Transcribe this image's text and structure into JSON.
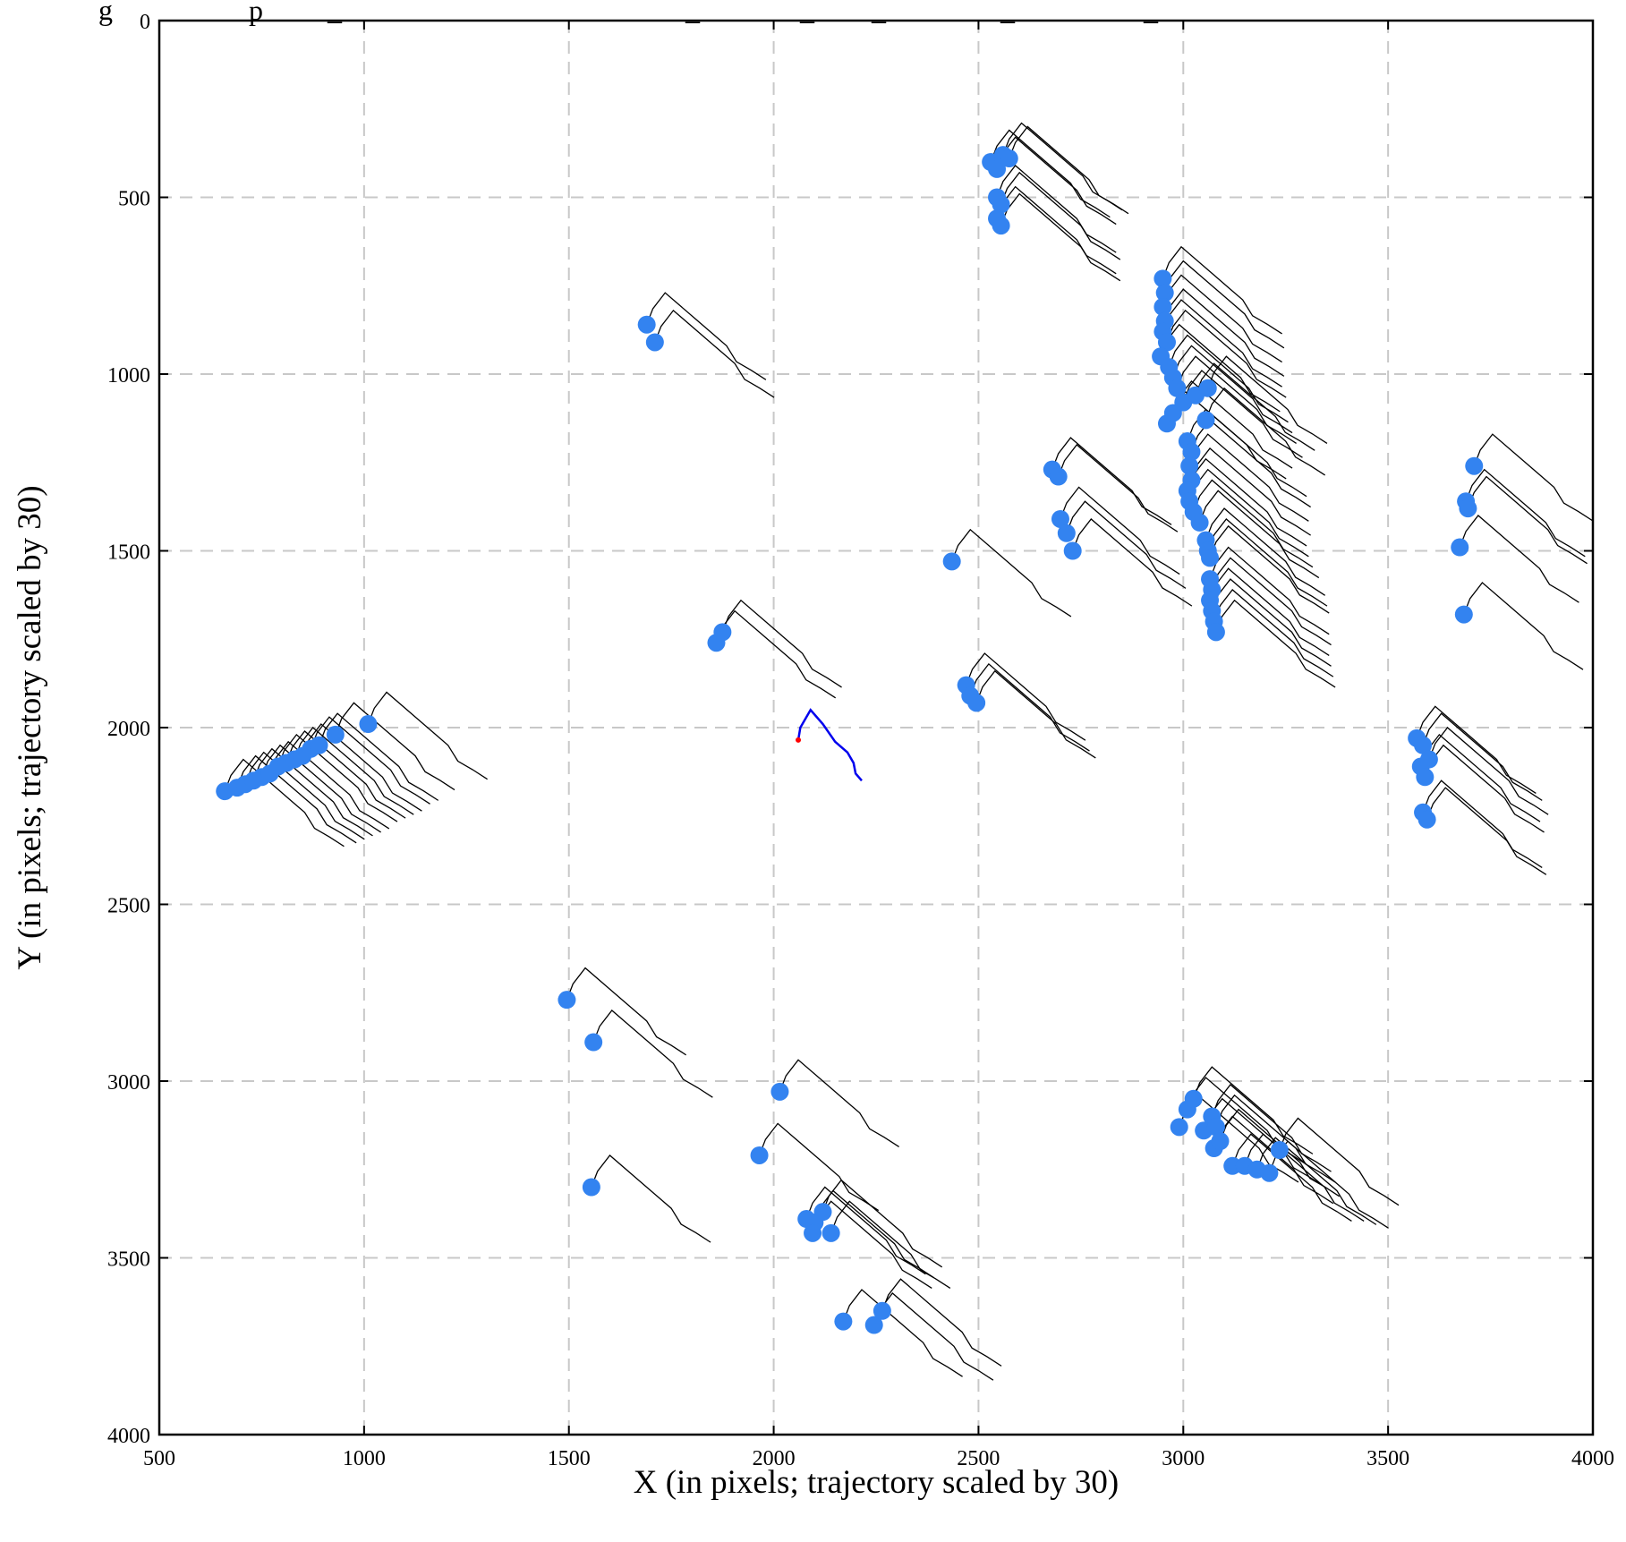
{
  "chart_data": {
    "type": "scatter",
    "title": "g                   p         _                                                _              _        _                _                  _",
    "xlabel": "X (in pixels; trajectory scaled by 30)",
    "ylabel": "Y (in pixels; trajectory scaled by 30)",
    "xlim": [
      500,
      4000
    ],
    "ylim": [
      0,
      4000
    ],
    "y_inverted": true,
    "grid": true,
    "grid_style": "dashed",
    "x_ticks": [
      500,
      1000,
      1500,
      2000,
      2500,
      3000,
      3500,
      4000
    ],
    "y_ticks": [
      0,
      500,
      1000,
      1500,
      2000,
      2500,
      3000,
      3500,
      4000
    ],
    "trajectory_shape": [
      [
        0,
        0
      ],
      [
        0.5,
        -1.5
      ],
      [
        1.5,
        -3.0
      ],
      [
        4.0,
        -0.5
      ],
      [
        5.5,
        1.0
      ],
      [
        6.5,
        2.0
      ],
      [
        7.3,
        3.5
      ],
      [
        8.5,
        4.3
      ],
      [
        9.7,
        5.2
      ]
    ],
    "trajectory_scale": 30,
    "colors": {
      "points": "#3383f0",
      "trajectories": "#000000",
      "highlight": "#0000ee",
      "highlight_start": "#ff0000"
    },
    "series": [
      {
        "kind": "agents",
        "points": [
          [
            660,
            2180
          ],
          [
            690,
            2170
          ],
          [
            710,
            2160
          ],
          [
            730,
            2150
          ],
          [
            750,
            2140
          ],
          [
            770,
            2130
          ],
          [
            790,
            2110
          ],
          [
            810,
            2100
          ],
          [
            830,
            2090
          ],
          [
            850,
            2080
          ],
          [
            870,
            2060
          ],
          [
            890,
            2050
          ],
          [
            930,
            2020
          ],
          [
            1010,
            1990
          ],
          [
            1690,
            860
          ],
          [
            1710,
            910
          ],
          [
            1860,
            1760
          ],
          [
            1875,
            1730
          ],
          [
            2530,
            400
          ],
          [
            2545,
            420
          ],
          [
            2560,
            380
          ],
          [
            2575,
            390
          ],
          [
            2545,
            500
          ],
          [
            2555,
            520
          ],
          [
            2545,
            560
          ],
          [
            2555,
            580
          ],
          [
            2950,
            730
          ],
          [
            2955,
            770
          ],
          [
            2950,
            810
          ],
          [
            2955,
            850
          ],
          [
            2950,
            880
          ],
          [
            2960,
            910
          ],
          [
            2945,
            950
          ],
          [
            2965,
            980
          ],
          [
            2975,
            1010
          ],
          [
            2985,
            1040
          ],
          [
            2960,
            1140
          ],
          [
            2975,
            1110
          ],
          [
            3000,
            1080
          ],
          [
            3030,
            1060
          ],
          [
            3060,
            1040
          ],
          [
            3055,
            1130
          ],
          [
            3010,
            1190
          ],
          [
            3020,
            1220
          ],
          [
            3015,
            1260
          ],
          [
            3020,
            1300
          ],
          [
            3010,
            1330
          ],
          [
            3015,
            1360
          ],
          [
            3025,
            1390
          ],
          [
            3040,
            1420
          ],
          [
            3055,
            1470
          ],
          [
            3060,
            1500
          ],
          [
            3065,
            1520
          ],
          [
            3065,
            1580
          ],
          [
            3070,
            1610
          ],
          [
            3065,
            1640
          ],
          [
            3070,
            1670
          ],
          [
            3075,
            1700
          ],
          [
            3080,
            1730
          ],
          [
            2680,
            1270
          ],
          [
            2695,
            1290
          ],
          [
            2700,
            1410
          ],
          [
            2715,
            1450
          ],
          [
            2730,
            1500
          ],
          [
            2435,
            1530
          ],
          [
            2470,
            1880
          ],
          [
            2480,
            1910
          ],
          [
            2495,
            1930
          ],
          [
            3710,
            1260
          ],
          [
            3690,
            1360
          ],
          [
            3695,
            1380
          ],
          [
            3675,
            1490
          ],
          [
            3685,
            1680
          ],
          [
            3570,
            2030
          ],
          [
            3585,
            2050
          ],
          [
            3580,
            2110
          ],
          [
            3590,
            2140
          ],
          [
            3600,
            2090
          ],
          [
            3585,
            2240
          ],
          [
            3595,
            2260
          ],
          [
            1495,
            2770
          ],
          [
            1560,
            2890
          ],
          [
            1555,
            3300
          ],
          [
            2015,
            3030
          ],
          [
            1965,
            3210
          ],
          [
            2080,
            3390
          ],
          [
            2100,
            3400
          ],
          [
            2095,
            3430
          ],
          [
            2140,
            3430
          ],
          [
            2120,
            3370
          ],
          [
            2170,
            3680
          ],
          [
            2245,
            3690
          ],
          [
            2265,
            3650
          ],
          [
            2990,
            3130
          ],
          [
            3010,
            3080
          ],
          [
            3025,
            3050
          ],
          [
            3050,
            3140
          ],
          [
            3070,
            3100
          ],
          [
            3080,
            3130
          ],
          [
            3075,
            3190
          ],
          [
            3090,
            3170
          ],
          [
            3120,
            3240
          ],
          [
            3150,
            3240
          ],
          [
            3180,
            3250
          ],
          [
            3210,
            3260
          ],
          [
            3235,
            3195
          ]
        ]
      },
      {
        "kind": "highlighted-trajectory",
        "points": [
          [
            2060,
            2035
          ],
          [
            2065,
            2000
          ],
          [
            2090,
            1950
          ],
          [
            2120,
            1990
          ],
          [
            2150,
            2040
          ],
          [
            2180,
            2070
          ],
          [
            2195,
            2100
          ],
          [
            2200,
            2130
          ],
          [
            2215,
            2150
          ]
        ]
      }
    ]
  }
}
